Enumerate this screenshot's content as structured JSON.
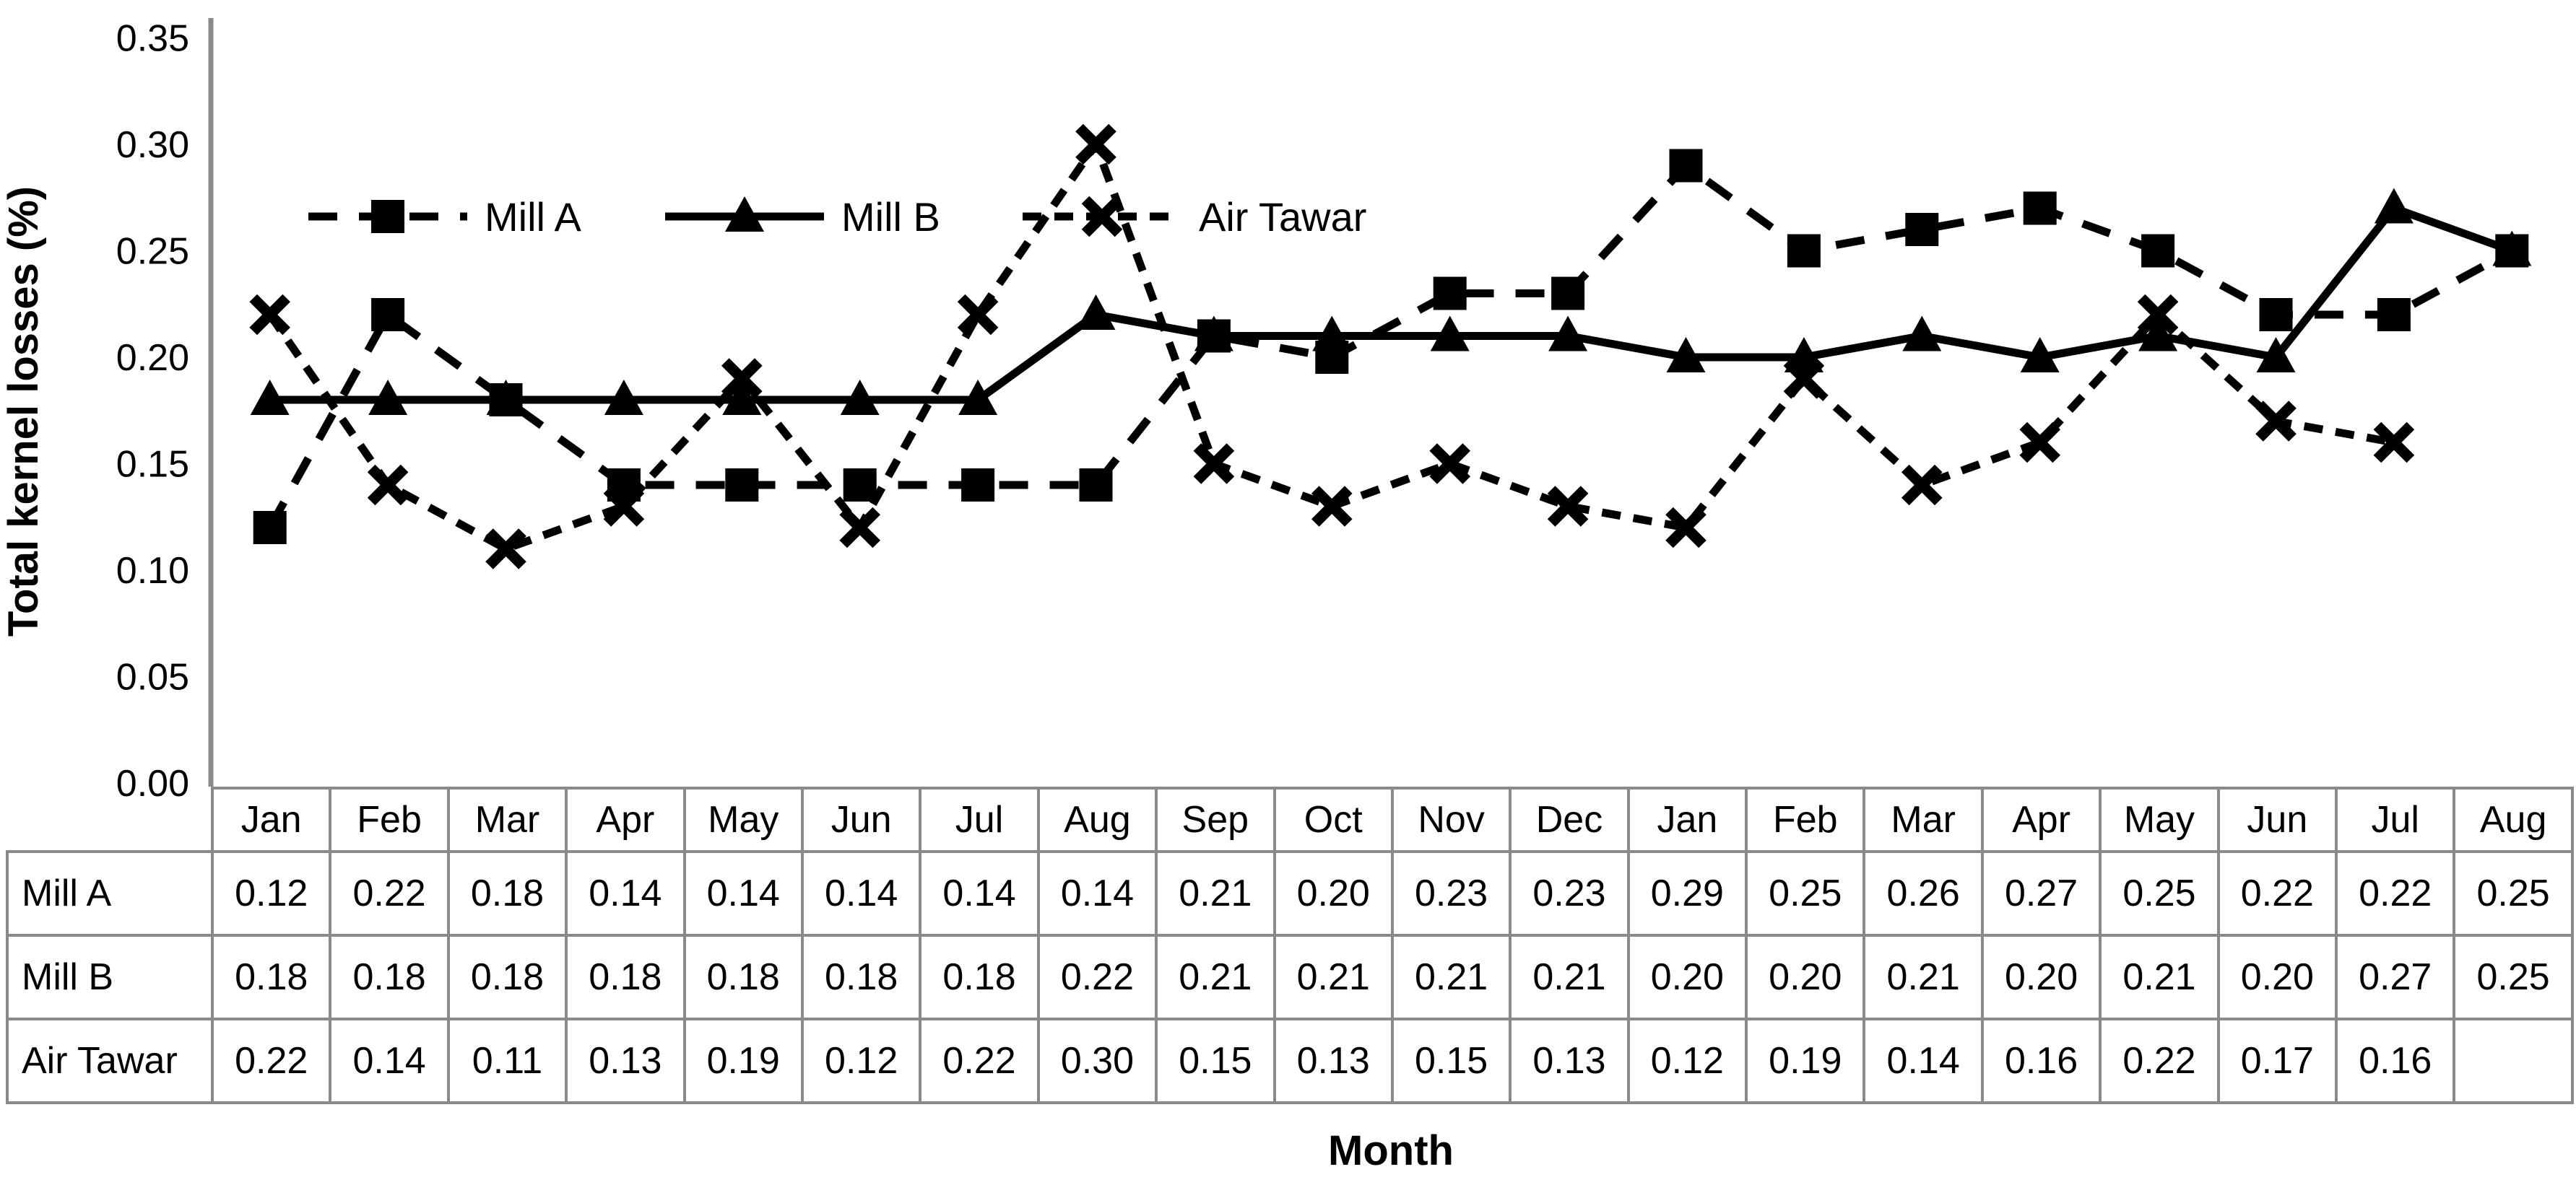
{
  "colors": {
    "series_color": "#000000",
    "axis_color": "#8a8a8a",
    "table_border_color": "#8a8a8a",
    "background": "#ffffff"
  },
  "chart": {
    "y_axis_title": "Total kernel losses (%)",
    "x_axis_title": "Month",
    "y_ticks": [
      "0.35",
      "0.30",
      "0.25",
      "0.20",
      "0.15",
      "0.10",
      "0.05",
      "0.00"
    ]
  },
  "chart_data": {
    "type": "line",
    "title": "",
    "xlabel": "Month",
    "ylabel": "Total kernel losses (%)",
    "ylim": [
      0,
      0.35
    ],
    "ytick_step": 0.05,
    "grid": false,
    "legend_position": "inside-top-left",
    "categories": [
      "Jan",
      "Feb",
      "Mar",
      "Apr",
      "May",
      "Jun",
      "Jul",
      "Aug",
      "Sep",
      "Oct",
      "Nov",
      "Dec",
      "Jan",
      "Feb",
      "Mar",
      "Apr",
      "May",
      "Jun",
      "Jul",
      "Aug"
    ],
    "series": [
      {
        "name": "Mill A",
        "marker": "square",
        "line": "dashed",
        "z": 3,
        "values": [
          0.12,
          0.22,
          0.18,
          0.14,
          0.14,
          0.14,
          0.14,
          0.14,
          0.21,
          0.2,
          0.23,
          0.23,
          0.29,
          0.25,
          0.26,
          0.27,
          0.25,
          0.22,
          0.22,
          0.25
        ]
      },
      {
        "name": "Mill B",
        "marker": "triangle",
        "line": "solid",
        "z": 1,
        "values": [
          0.18,
          0.18,
          0.18,
          0.18,
          0.18,
          0.18,
          0.18,
          0.22,
          0.21,
          0.21,
          0.21,
          0.21,
          0.2,
          0.2,
          0.21,
          0.2,
          0.21,
          0.2,
          0.27,
          0.25
        ]
      },
      {
        "name": "Air Tawar",
        "marker": "x",
        "line": "dashed-short",
        "z": 2,
        "values": [
          0.22,
          0.14,
          0.11,
          0.13,
          0.19,
          0.12,
          0.22,
          0.3,
          0.15,
          0.13,
          0.15,
          0.13,
          0.12,
          0.19,
          0.14,
          0.16,
          0.22,
          0.17,
          0.16,
          null
        ]
      }
    ]
  },
  "table": {
    "corner_label": "",
    "months": [
      "Jan",
      "Feb",
      "Mar",
      "Apr",
      "May",
      "Jun",
      "Jul",
      "Aug",
      "Sep",
      "Oct",
      "Nov",
      "Dec",
      "Jan",
      "Feb",
      "Mar",
      "Apr",
      "May",
      "Jun",
      "Jul",
      "Aug"
    ],
    "rows": [
      {
        "label": "Mill A",
        "values": [
          "0.12",
          "0.22",
          "0.18",
          "0.14",
          "0.14",
          "0.14",
          "0.14",
          "0.14",
          "0.21",
          "0.20",
          "0.23",
          "0.23",
          "0.29",
          "0.25",
          "0.26",
          "0.27",
          "0.25",
          "0.22",
          "0.22",
          "0.25"
        ]
      },
      {
        "label": "Mill B",
        "values": [
          "0.18",
          "0.18",
          "0.18",
          "0.18",
          "0.18",
          "0.18",
          "0.18",
          "0.22",
          "0.21",
          "0.21",
          "0.21",
          "0.21",
          "0.20",
          "0.20",
          "0.21",
          "0.20",
          "0.21",
          "0.20",
          "0.27",
          "0.25"
        ]
      },
      {
        "label": "Air Tawar",
        "values": [
          "0.22",
          "0.14",
          "0.11",
          "0.13",
          "0.19",
          "0.12",
          "0.22",
          "0.30",
          "0.15",
          "0.13",
          "0.15",
          "0.13",
          "0.12",
          "0.19",
          "0.14",
          "0.16",
          "0.22",
          "0.17",
          "0.16",
          ""
        ]
      }
    ]
  }
}
